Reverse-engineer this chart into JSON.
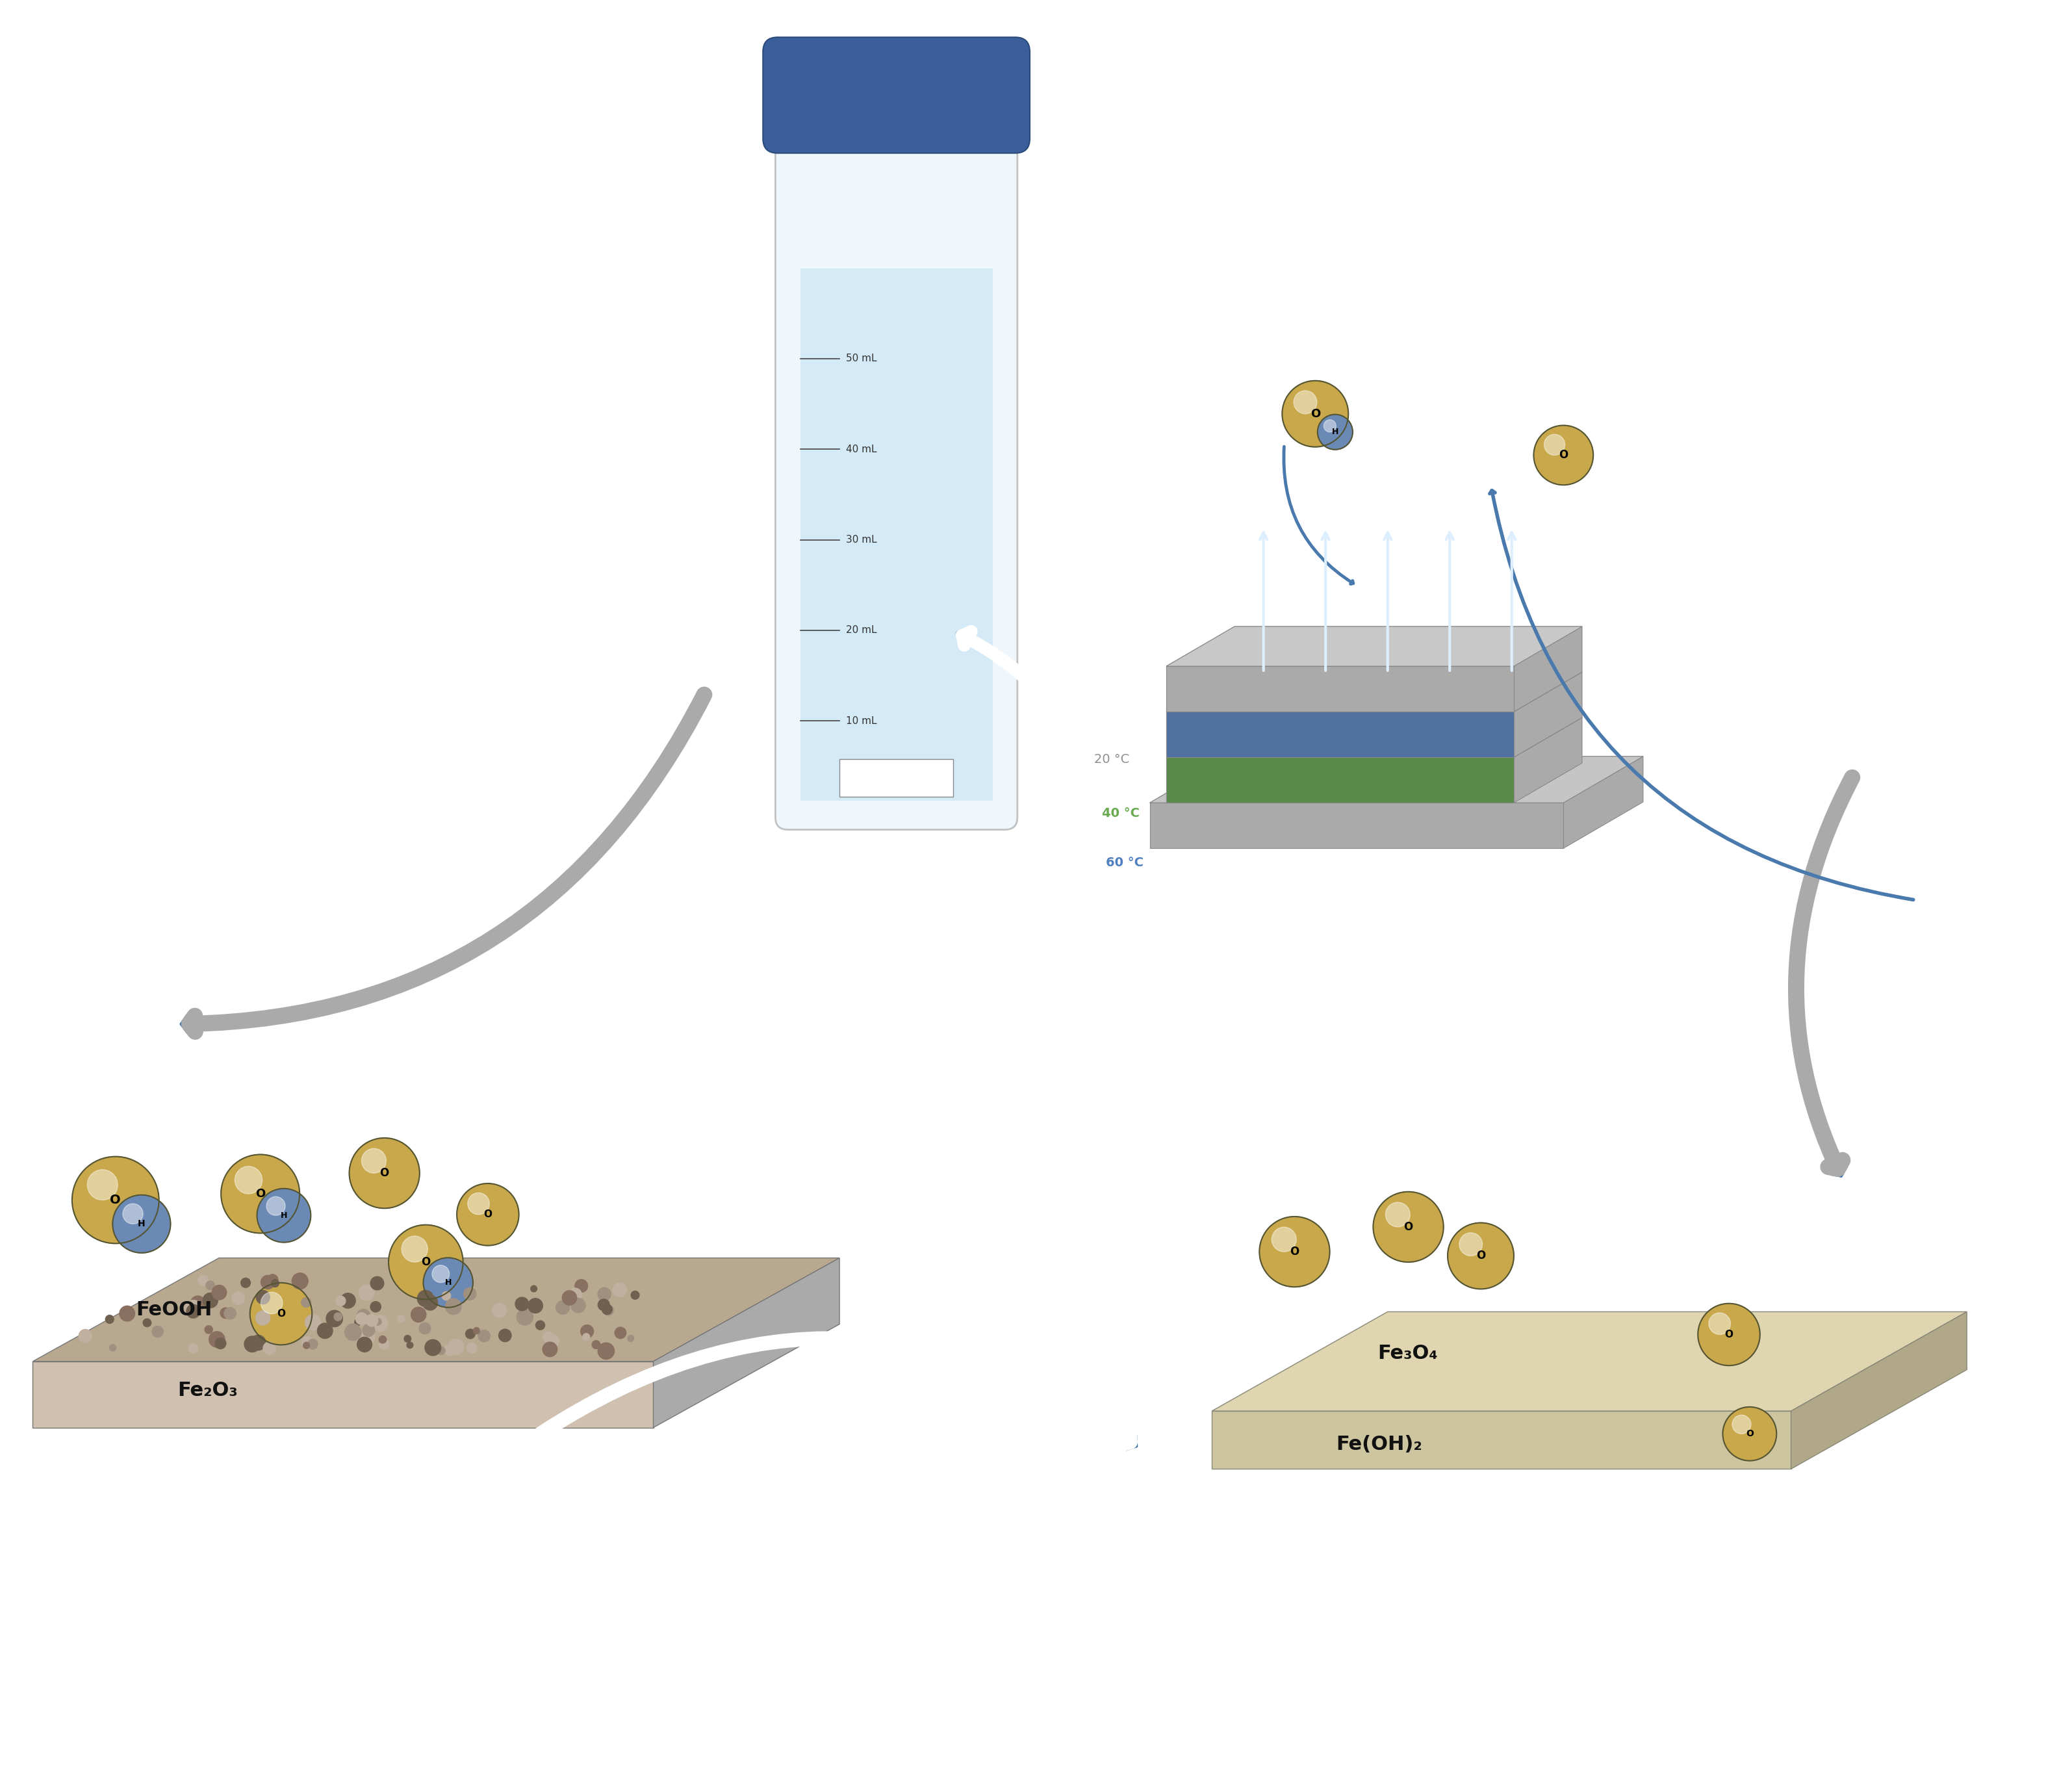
{
  "bg_color": "#ffffff",
  "arrow_color_blue": "#4a7aad",
  "arrow_color_gray": "#b0b0b0",
  "sphere_gold": "#c9a84c",
  "sphere_blue": "#6a8ab5",
  "plate_left_color": "#b8a090",
  "plate_right_color": "#d4c89a",
  "plate_gray_top": "#c8c8c8",
  "plate_green": "#7ab56a",
  "plate_blue_layer": "#7090c0",
  "temp_20_color": "#909090",
  "temp_40_color": "#6aaa50",
  "temp_60_color": "#5080c0",
  "tube_body": "#d0e8f5",
  "tube_cap": "#3a5f9a",
  "label_left1": "FeOOH",
  "label_left2": "Fe₂O₃",
  "label_right1": "Fe₃O₄",
  "label_right2": "Fe(OH)₂"
}
